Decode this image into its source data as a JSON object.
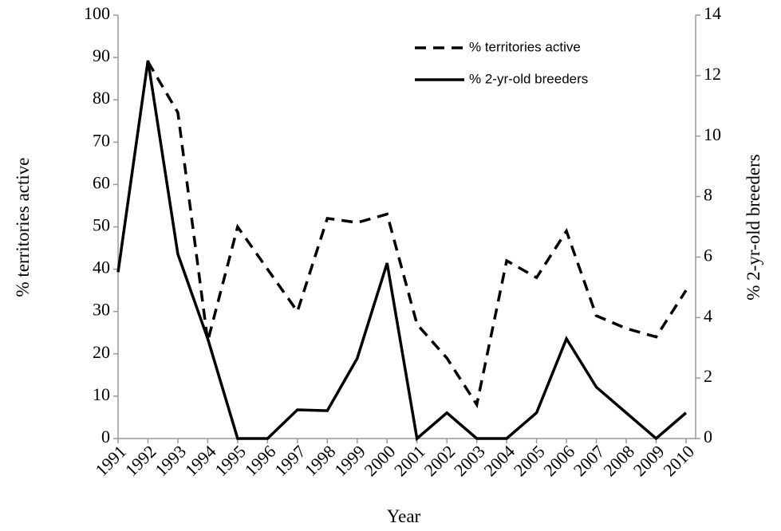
{
  "chart_data": {
    "type": "line",
    "x_label": "Year",
    "y_label": "% territories active",
    "y2_label": "% 2-yr-old breeders",
    "categories": [
      "1991",
      "1992",
      "1993",
      "1994",
      "1995",
      "1996",
      "1997",
      "1998",
      "1999",
      "2000",
      "2001",
      "2002",
      "2003",
      "2004",
      "2005",
      "2006",
      "2007",
      "2008",
      "2009",
      "2010"
    ],
    "series": [
      {
        "name": "% territories active",
        "color": "#000000",
        "dash": true,
        "values": [
          null,
          89,
          77,
          23,
          50,
          40,
          30,
          52,
          51,
          53,
          27,
          19,
          8,
          42,
          38,
          49,
          29,
          26,
          24,
          35
        ]
      },
      {
        "name": "% 2-yr-old breeders",
        "color": "#000000",
        "dash": false,
        "axis": "y2",
        "values": [
          5.5,
          12.5,
          6.1,
          3.3,
          0,
          0,
          0.95,
          0.92,
          2.65,
          5.8,
          0,
          0.85,
          0,
          0,
          0.85,
          3.3,
          1.7,
          0.85,
          0,
          0.85
        ]
      }
    ],
    "ylim": [
      0,
      100
    ],
    "yticks": [
      0,
      10,
      20,
      30,
      40,
      50,
      60,
      70,
      80,
      90,
      100
    ],
    "y2lim": [
      0,
      14
    ],
    "y2ticks": [
      0,
      2,
      4,
      6,
      8,
      10,
      12,
      14
    ],
    "legend": "upper right"
  }
}
